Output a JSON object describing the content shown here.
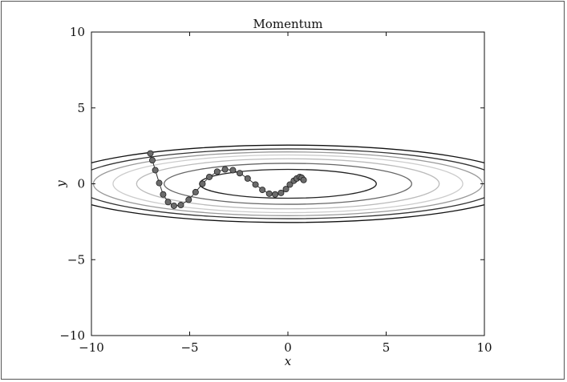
{
  "chart_data": {
    "type": "line",
    "title": "Momentum",
    "xlabel": "x",
    "ylabel": "y",
    "xlim": [
      -10,
      10
    ],
    "ylim": [
      -10,
      10
    ],
    "xticks": [
      -10,
      -5,
      0,
      5,
      10
    ],
    "yticks": [
      -10,
      -5,
      0,
      5,
      10
    ],
    "xtick_labels": [
      "−10",
      "−5",
      "0",
      "5",
      "10"
    ],
    "ytick_labels": [
      "−10",
      "−5",
      "0",
      "5",
      "10"
    ],
    "grid": false,
    "contours": [
      {
        "a": 4.5,
        "b": 0.95,
        "color": "#222222"
      },
      {
        "a": 6.3,
        "b": 1.35,
        "color": "#666666"
      },
      {
        "a": 7.7,
        "b": 1.65,
        "color": "#bbbbbb"
      },
      {
        "a": 8.9,
        "b": 1.9,
        "color": "#cccccc"
      },
      {
        "a": 9.9,
        "b": 2.1,
        "color": "#999999"
      },
      {
        "a": 10.9,
        "b": 2.3,
        "color": "#333333"
      },
      {
        "a": 11.9,
        "b": 2.55,
        "color": "#111111"
      }
    ],
    "series": [
      {
        "x": [
          -7.0,
          -6.9,
          -6.75,
          -6.55,
          -6.35,
          -6.1,
          -5.8,
          -5.45,
          -5.05,
          -4.7,
          -4.35,
          -4.0,
          -3.6,
          -3.2,
          -2.8,
          -2.45,
          -2.05,
          -1.65,
          -1.3,
          -0.95,
          -0.65,
          -0.35,
          -0.1,
          0.1,
          0.3,
          0.45,
          0.6,
          0.7,
          0.8
        ],
        "y": [
          2.0,
          1.55,
          0.9,
          0.05,
          -0.7,
          -1.2,
          -1.45,
          -1.4,
          -1.05,
          -0.55,
          0.0,
          0.45,
          0.8,
          0.95,
          0.9,
          0.7,
          0.35,
          -0.05,
          -0.4,
          -0.65,
          -0.7,
          -0.6,
          -0.35,
          -0.05,
          0.2,
          0.35,
          0.45,
          0.4,
          0.25
        ]
      }
    ]
  }
}
